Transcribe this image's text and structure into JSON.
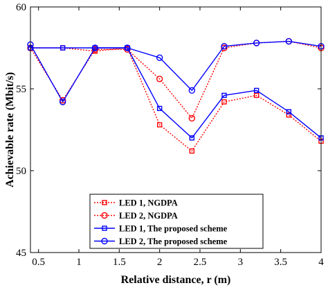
{
  "chart_data": {
    "type": "line",
    "xlabel": "Relative distance, r (m)",
    "ylabel": "Achievable rate (Mbit/s)",
    "xlim": [
      0.4,
      4.0
    ],
    "ylim": [
      45,
      60
    ],
    "xticks": [
      0.5,
      1,
      1.5,
      2,
      2.5,
      3,
      3.5,
      4
    ],
    "xtick_labels": [
      "0.5",
      "1",
      "1.5",
      "2",
      "2.5",
      "3",
      "3.5",
      "4"
    ],
    "yticks": [
      45,
      50,
      55,
      60
    ],
    "ytick_labels": [
      "45",
      "50",
      "55",
      "60"
    ],
    "grid": false,
    "legend_position": "bottom-center",
    "x": [
      0.4,
      0.8,
      1.2,
      1.6,
      2.0,
      2.4,
      2.8,
      3.2,
      3.6,
      4.0
    ],
    "series": [
      {
        "name": "LED 1, NGDPA",
        "color": "#ff0000",
        "line_style": "dotted",
        "marker": "square",
        "values": [
          57.5,
          57.5,
          57.3,
          57.5,
          52.8,
          51.2,
          54.2,
          54.6,
          53.4,
          51.8
        ]
      },
      {
        "name": "LED 2, NGDPA",
        "color": "#ff0000",
        "line_style": "dotted",
        "marker": "circle",
        "values": [
          57.5,
          54.3,
          57.4,
          57.4,
          55.6,
          53.2,
          57.5,
          57.8,
          57.9,
          57.5
        ]
      },
      {
        "name": "LED 1, The proposed scheme",
        "color": "#0000ff",
        "line_style": "solid",
        "marker": "square",
        "values": [
          57.5,
          57.5,
          57.5,
          57.5,
          53.8,
          52.0,
          54.6,
          54.9,
          53.6,
          52.0
        ]
      },
      {
        "name": "LED 2, The proposed scheme",
        "color": "#0000ff",
        "line_style": "solid",
        "marker": "circle",
        "values": [
          57.7,
          54.2,
          57.5,
          57.5,
          56.9,
          54.9,
          57.6,
          57.8,
          57.9,
          57.6
        ]
      }
    ]
  }
}
